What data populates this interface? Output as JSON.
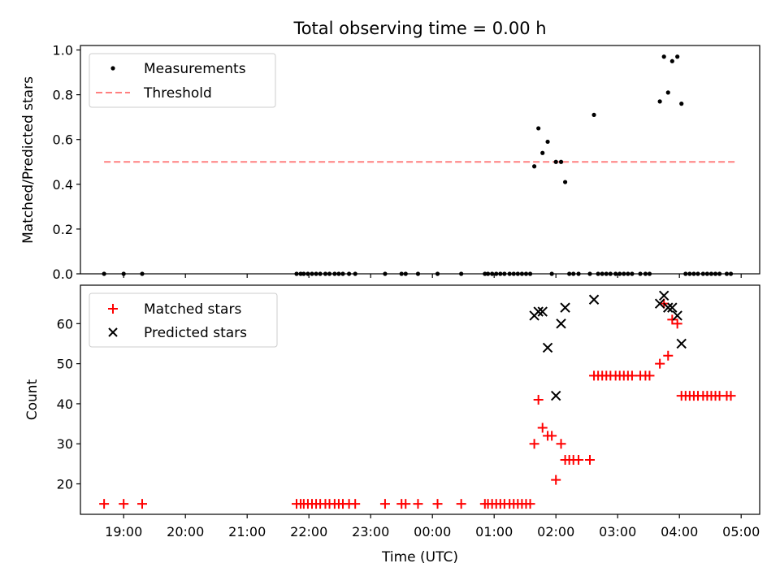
{
  "title": "Total observing time = 0.00 h",
  "xlabel": "Time (UTC)",
  "x_tick_labels": [
    "19:00",
    "20:00",
    "21:00",
    "22:00",
    "23:00",
    "00:00",
    "01:00",
    "02:00",
    "03:00",
    "04:00",
    "05:00"
  ],
  "chart_data": [
    {
      "type": "scatter",
      "ylabel": "Matched/Predicted stars",
      "ylim": [
        0,
        1.02
      ],
      "y_ticks": [
        "0.0",
        "0.2",
        "0.4",
        "0.6",
        "0.8",
        "1.0"
      ],
      "legend_position": "top-left",
      "threshold": {
        "name": "Threshold",
        "value": 0.5,
        "x_range": [
          "18:41",
          "04:55"
        ],
        "color": "#ff8080"
      },
      "series": [
        {
          "name": "Measurements",
          "color": "#000000",
          "marker": "dot",
          "points": [
            [
              "18:41",
              0
            ],
            [
              "19:00",
              0
            ],
            [
              "19:18",
              0
            ],
            [
              "21:48",
              0
            ],
            [
              "21:52",
              0
            ],
            [
              "21:55",
              0
            ],
            [
              "21:59",
              0
            ],
            [
              "22:03",
              0
            ],
            [
              "22:07",
              0
            ],
            [
              "22:11",
              0
            ],
            [
              "22:16",
              0
            ],
            [
              "22:20",
              0
            ],
            [
              "22:25",
              0
            ],
            [
              "22:29",
              0
            ],
            [
              "22:33",
              0
            ],
            [
              "22:39",
              0
            ],
            [
              "22:45",
              0
            ],
            [
              "23:14",
              0
            ],
            [
              "23:30",
              0
            ],
            [
              "23:34",
              0
            ],
            [
              "23:46",
              0
            ],
            [
              "00:05",
              0
            ],
            [
              "00:28",
              0
            ],
            [
              "00:51",
              0
            ],
            [
              "00:54",
              0
            ],
            [
              "00:58",
              0
            ],
            [
              "01:02",
              0
            ],
            [
              "01:06",
              0
            ],
            [
              "01:10",
              0
            ],
            [
              "01:15",
              0
            ],
            [
              "01:19",
              0
            ],
            [
              "01:23",
              0
            ],
            [
              "01:27",
              0
            ],
            [
              "01:31",
              0
            ],
            [
              "01:35",
              0
            ],
            [
              "01:39",
              0.48
            ],
            [
              "01:43",
              0.65
            ],
            [
              "01:47",
              0.54
            ],
            [
              "01:52",
              0.59
            ],
            [
              "01:56",
              0
            ],
            [
              "02:00",
              0.5
            ],
            [
              "02:05",
              0.5
            ],
            [
              "02:09",
              0.41
            ],
            [
              "02:13",
              0
            ],
            [
              "02:17",
              0
            ],
            [
              "02:22",
              0
            ],
            [
              "02:33",
              0
            ],
            [
              "02:37",
              0.71
            ],
            [
              "02:41",
              0
            ],
            [
              "02:45",
              0
            ],
            [
              "02:49",
              0
            ],
            [
              "02:53",
              0
            ],
            [
              "02:58",
              0
            ],
            [
              "03:02",
              0
            ],
            [
              "03:06",
              0
            ],
            [
              "03:10",
              0
            ],
            [
              "03:14",
              0
            ],
            [
              "03:22",
              0
            ],
            [
              "03:27",
              0
            ],
            [
              "03:31",
              0
            ],
            [
              "03:41",
              0.77
            ],
            [
              "03:45",
              0.97
            ],
            [
              "03:49",
              0.81
            ],
            [
              "03:53",
              0.95
            ],
            [
              "03:58",
              0.97
            ],
            [
              "04:02",
              0.76
            ],
            [
              "04:06",
              0
            ],
            [
              "04:10",
              0
            ],
            [
              "04:14",
              0
            ],
            [
              "04:18",
              0
            ],
            [
              "04:23",
              0
            ],
            [
              "04:27",
              0
            ],
            [
              "04:31",
              0
            ],
            [
              "04:35",
              0
            ],
            [
              "04:39",
              0
            ],
            [
              "04:46",
              0
            ],
            [
              "04:50",
              0
            ]
          ]
        }
      ]
    },
    {
      "type": "scatter",
      "ylabel": "Count",
      "ylim": [
        12.4,
        69.6
      ],
      "y_ticks": [
        "20",
        "30",
        "40",
        "50",
        "60"
      ],
      "legend_position": "top-left",
      "series": [
        {
          "name": "Matched stars",
          "color": "#ff0000",
          "marker": "plus",
          "points": [
            [
              "18:41",
              15
            ],
            [
              "19:00",
              15
            ],
            [
              "19:18",
              15
            ],
            [
              "21:48",
              15
            ],
            [
              "21:52",
              15
            ],
            [
              "21:55",
              15
            ],
            [
              "21:59",
              15
            ],
            [
              "22:03",
              15
            ],
            [
              "22:07",
              15
            ],
            [
              "22:11",
              15
            ],
            [
              "22:16",
              15
            ],
            [
              "22:20",
              15
            ],
            [
              "22:25",
              15
            ],
            [
              "22:29",
              15
            ],
            [
              "22:33",
              15
            ],
            [
              "22:39",
              15
            ],
            [
              "22:45",
              15
            ],
            [
              "23:14",
              15
            ],
            [
              "23:30",
              15
            ],
            [
              "23:34",
              15
            ],
            [
              "23:46",
              15
            ],
            [
              "00:05",
              15
            ],
            [
              "00:28",
              15
            ],
            [
              "00:51",
              15
            ],
            [
              "00:54",
              15
            ],
            [
              "00:58",
              15
            ],
            [
              "01:02",
              15
            ],
            [
              "01:06",
              15
            ],
            [
              "01:10",
              15
            ],
            [
              "01:15",
              15
            ],
            [
              "01:19",
              15
            ],
            [
              "01:23",
              15
            ],
            [
              "01:27",
              15
            ],
            [
              "01:31",
              15
            ],
            [
              "01:35",
              15
            ],
            [
              "01:39",
              30
            ],
            [
              "01:43",
              41
            ],
            [
              "01:47",
              34
            ],
            [
              "01:52",
              32
            ],
            [
              "01:56",
              32
            ],
            [
              "02:00",
              21
            ],
            [
              "02:05",
              30
            ],
            [
              "02:09",
              26
            ],
            [
              "02:13",
              26
            ],
            [
              "02:17",
              26
            ],
            [
              "02:22",
              26
            ],
            [
              "02:33",
              26
            ],
            [
              "02:37",
              47
            ],
            [
              "02:41",
              47
            ],
            [
              "02:45",
              47
            ],
            [
              "02:49",
              47
            ],
            [
              "02:53",
              47
            ],
            [
              "02:58",
              47
            ],
            [
              "03:02",
              47
            ],
            [
              "03:06",
              47
            ],
            [
              "03:10",
              47
            ],
            [
              "03:14",
              47
            ],
            [
              "03:22",
              47
            ],
            [
              "03:27",
              47
            ],
            [
              "03:31",
              47
            ],
            [
              "03:41",
              50
            ],
            [
              "03:45",
              65
            ],
            [
              "03:49",
              52
            ],
            [
              "03:53",
              61
            ],
            [
              "03:58",
              60
            ],
            [
              "04:02",
              42
            ],
            [
              "04:06",
              42
            ],
            [
              "04:10",
              42
            ],
            [
              "04:14",
              42
            ],
            [
              "04:18",
              42
            ],
            [
              "04:23",
              42
            ],
            [
              "04:27",
              42
            ],
            [
              "04:31",
              42
            ],
            [
              "04:35",
              42
            ],
            [
              "04:39",
              42
            ],
            [
              "04:46",
              42
            ],
            [
              "04:50",
              42
            ]
          ]
        },
        {
          "name": "Predicted stars",
          "color": "#000000",
          "marker": "x",
          "points": [
            [
              "01:39",
              62
            ],
            [
              "01:43",
              63
            ],
            [
              "01:47",
              63
            ],
            [
              "01:52",
              54
            ],
            [
              "02:00",
              42
            ],
            [
              "02:05",
              60
            ],
            [
              "02:09",
              64
            ],
            [
              "02:37",
              66
            ],
            [
              "03:41",
              65
            ],
            [
              "03:45",
              67
            ],
            [
              "03:49",
              64
            ],
            [
              "03:53",
              64
            ],
            [
              "03:58",
              62
            ],
            [
              "04:02",
              55
            ]
          ]
        }
      ]
    }
  ]
}
